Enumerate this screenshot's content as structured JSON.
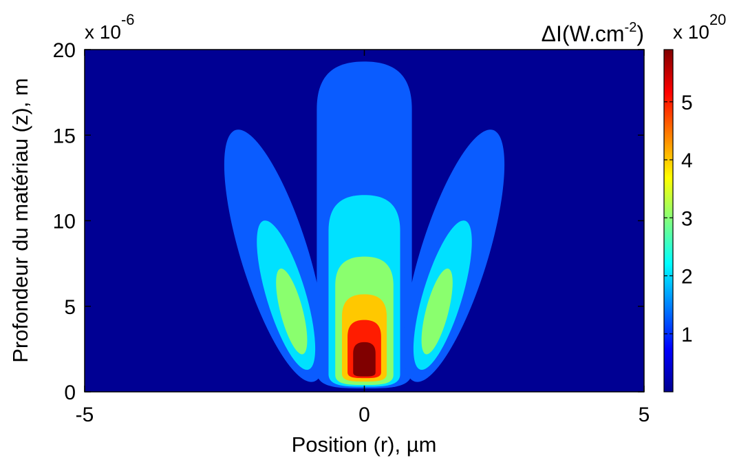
{
  "chart_data": {
    "type": "heatmap",
    "subtype": "filled-contour",
    "colormap": "jet",
    "xlabel": "Position (r), µm",
    "ylabel": "Profondeur du matériau (z), m",
    "y_multiplier": "x 10",
    "y_multiplier_exp": "-6",
    "colorbar_label_main": "ΔI(W.cm",
    "colorbar_label_exp": "-2",
    "colorbar_label_end": ")",
    "colorbar_multiplier": "x 10",
    "colorbar_multiplier_exp": "20",
    "xlim": [
      -5,
      5
    ],
    "ylim": [
      0,
      20
    ],
    "clim": [
      0,
      5.9
    ],
    "x_ticks": [
      -5,
      0,
      5
    ],
    "y_ticks": [
      0,
      5,
      10,
      15,
      20
    ],
    "colorbar_ticks": [
      1,
      2,
      3,
      4,
      5
    ],
    "x_tick_labels": [
      "-5",
      "0",
      "5"
    ],
    "y_tick_labels": [
      "0",
      "5",
      "10",
      "15",
      "20"
    ],
    "colorbar_tick_labels": [
      "1",
      "2",
      "3",
      "4",
      "5"
    ],
    "contour_levels": [
      {
        "level": 0.7,
        "color": "#0a5cff"
      },
      {
        "level": 1.6,
        "color": "#00e1ff"
      },
      {
        "level": 2.7,
        "color": "#8aff6e"
      },
      {
        "level": 3.8,
        "color": "#ffc800"
      },
      {
        "level": 4.6,
        "color": "#ff1c00"
      },
      {
        "level": 5.4,
        "color": "#800000"
      }
    ],
    "background_color": "#000093",
    "lobes": [
      {
        "name": "central lobe",
        "contours": [
          {
            "level": 0.7,
            "center": [
              0,
              9.7
            ],
            "r_half": 0.85,
            "z_range": [
              0.2,
              19.3
            ]
          },
          {
            "level": 1.6,
            "center": [
              0,
              5.9
            ],
            "r_half": 0.64,
            "z_range": [
              0.3,
              11.5
            ]
          },
          {
            "level": 2.7,
            "center": [
              0,
              4.1
            ],
            "r_half": 0.52,
            "z_range": [
              0.4,
              7.9
            ]
          },
          {
            "level": 3.8,
            "center": [
              0,
              3.0
            ],
            "r_half": 0.4,
            "z_range": [
              0.6,
              5.7
            ]
          },
          {
            "level": 4.6,
            "center": [
              0,
              2.35
            ],
            "r_half": 0.3,
            "z_range": [
              0.8,
              4.2
            ]
          },
          {
            "level": 5.4,
            "center": [
              0,
              1.95
            ],
            "r_half": 0.2,
            "z_range": [
              0.9,
              2.9
            ]
          }
        ]
      },
      {
        "name": "left lobe",
        "contours": [
          {
            "level": 0.7,
            "bottom": [
              -0.9,
              0.6
            ],
            "top": [
              -2.3,
              15.3
            ],
            "width": 1.2
          },
          {
            "level": 1.6,
            "bottom": [
              -1.0,
              1.3
            ],
            "top": [
              -1.8,
              10.0
            ],
            "width": 0.7
          },
          {
            "level": 2.7,
            "bottom": [
              -1.1,
              2.2
            ],
            "top": [
              -1.5,
              7.2
            ],
            "width": 0.4
          }
        ]
      },
      {
        "name": "right lobe",
        "contours": [
          {
            "level": 0.7,
            "bottom": [
              0.9,
              0.6
            ],
            "top": [
              2.3,
              15.3
            ],
            "width": 1.2
          },
          {
            "level": 1.6,
            "bottom": [
              1.0,
              1.3
            ],
            "top": [
              1.8,
              10.0
            ],
            "width": 0.7
          },
          {
            "level": 2.7,
            "bottom": [
              1.1,
              2.2
            ],
            "top": [
              1.5,
              7.2
            ],
            "width": 0.4
          }
        ]
      }
    ],
    "grid": false
  }
}
